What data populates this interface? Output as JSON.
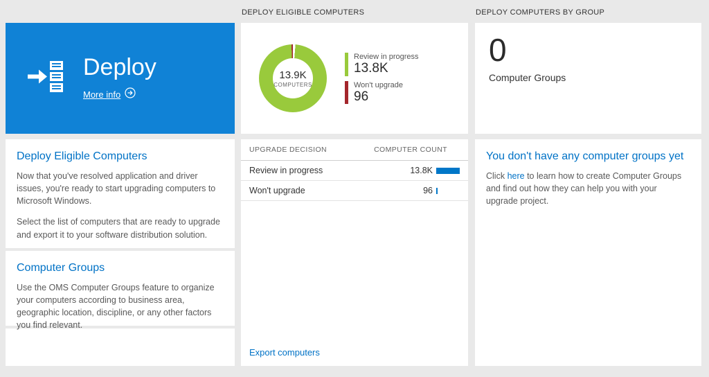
{
  "colors": {
    "accent": "#0072c6",
    "tile_blue": "#1082d6",
    "bar_blue": "#0077c8",
    "donut_green": "#99ca3c",
    "donut_red": "#a4262c"
  },
  "left": {
    "tile": {
      "title": "Deploy",
      "more_info": "More info"
    },
    "sections": [
      {
        "heading": "Deploy Eligible Computers",
        "p1": "Now that you've resolved application and driver issues, you're ready to start upgrading computers to Microsoft Windows.",
        "p2": "Select the list of computers that are ready to upgrade and export it to your software distribution solution."
      },
      {
        "heading": "Computer Groups",
        "p1": "Use the OMS Computer Groups feature to organize your computers according to business area, geographic location, discipline, or any other factors you find relevant."
      }
    ]
  },
  "middle": {
    "header": "DEPLOY ELIGIBLE COMPUTERS",
    "donut": {
      "center_value": "13.9K",
      "center_label": "COMPUTERS"
    },
    "legend": [
      {
        "label": "Review in progress",
        "value": "13.8K"
      },
      {
        "label": "Won't upgrade",
        "value": "96"
      }
    ],
    "table": {
      "header_decision": "UPGRADE DECISION",
      "header_count": "COMPUTER COUNT",
      "rows": [
        {
          "label": "Review in progress",
          "value": "13.8K"
        },
        {
          "label": "Won't upgrade",
          "value": "96"
        }
      ]
    },
    "export_label": "Export computers"
  },
  "right": {
    "header": "DEPLOY COMPUTERS BY GROUP",
    "tile": {
      "value": "0",
      "label": "Computer Groups"
    },
    "empty": {
      "heading": "You don't have any computer groups yet",
      "before": "Click ",
      "link": "here",
      "after": " to learn how to create Computer Groups and find out how they can help you with your upgrade project."
    }
  },
  "chart_data": {
    "type": "pie",
    "title": "Deploy Eligible Computers",
    "labels": [
      "Review in progress",
      "Won't upgrade"
    ],
    "values": [
      13800,
      96
    ],
    "center_total": "13.9K",
    "center_unit": "COMPUTERS",
    "colors": [
      "#99ca3c",
      "#a4262c"
    ],
    "legend_position": "right"
  }
}
